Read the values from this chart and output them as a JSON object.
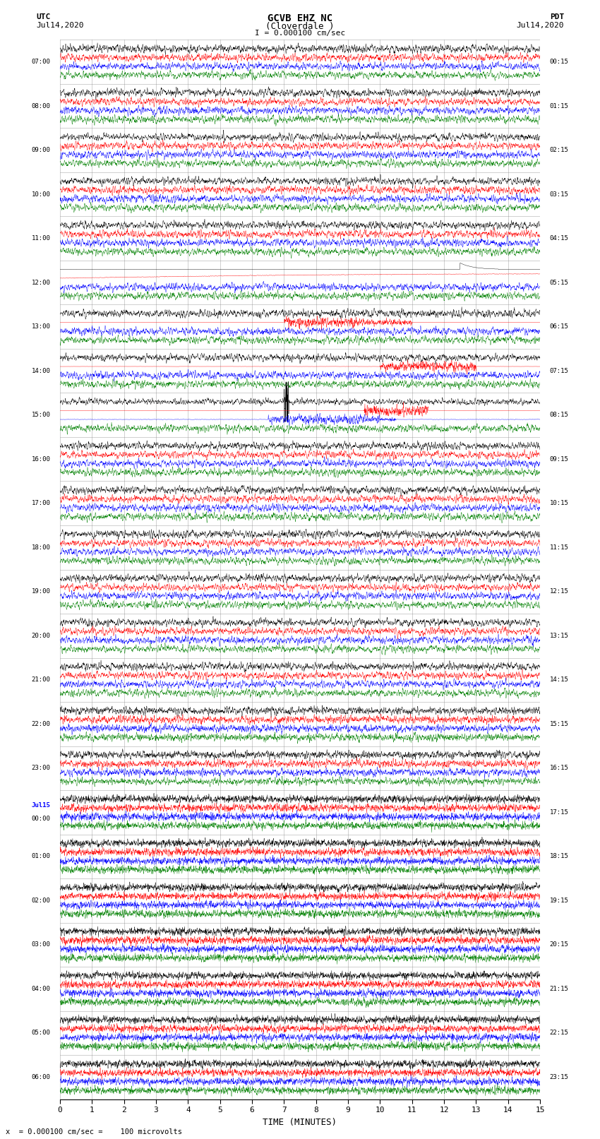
{
  "title_line1": "GCVB EHZ NC",
  "title_line2": "(Cloverdale )",
  "title_line3": "I = 0.000100 cm/sec",
  "left_label_top": "UTC",
  "left_label_date": "Jul14,2020",
  "right_label_top": "PDT",
  "right_label_date": "Jul14,2020",
  "xlabel": "TIME (MINUTES)",
  "bottom_note": "x  = 0.000100 cm/sec =    100 microvolts",
  "utc_times": [
    "07:00",
    "08:00",
    "09:00",
    "10:00",
    "11:00",
    "12:00",
    "13:00",
    "14:00",
    "15:00",
    "16:00",
    "17:00",
    "18:00",
    "19:00",
    "20:00",
    "21:00",
    "22:00",
    "23:00",
    "Jul15\n00:00",
    "01:00",
    "02:00",
    "03:00",
    "04:00",
    "05:00",
    "06:00"
  ],
  "pdt_times": [
    "00:15",
    "01:15",
    "02:15",
    "03:15",
    "04:15",
    "05:15",
    "06:15",
    "07:15",
    "08:15",
    "09:15",
    "10:15",
    "11:15",
    "12:15",
    "13:15",
    "14:15",
    "15:15",
    "16:15",
    "17:15",
    "18:15",
    "19:15",
    "20:15",
    "21:15",
    "22:15",
    "23:15"
  ],
  "n_rows": 24,
  "n_minutes": 15,
  "colors": [
    "black",
    "red",
    "blue",
    "green"
  ],
  "background_color": "white",
  "grid_color": "#777777",
  "figsize": [
    8.5,
    16.13
  ],
  "dpi": 100,
  "xmin": 0,
  "xmax": 15,
  "xticks": [
    0,
    1,
    2,
    3,
    4,
    5,
    6,
    7,
    8,
    9,
    10,
    11,
    12,
    13,
    14,
    15
  ]
}
